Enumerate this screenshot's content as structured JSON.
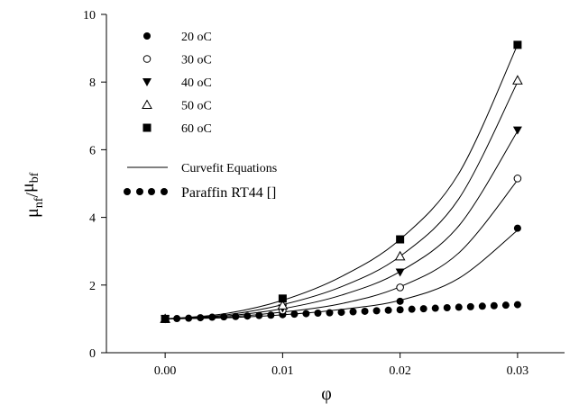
{
  "chart_data": {
    "type": "scatter",
    "title": "",
    "xlabel": "φ",
    "ylabel": {
      "main": "μ",
      "sub1": "nf",
      "sep": "/",
      "main2": "μ",
      "sub2": "bf"
    },
    "xlim": [
      -0.005,
      0.034
    ],
    "ylim": [
      0,
      10
    ],
    "xticks": [
      0.0,
      0.01,
      0.02,
      0.03
    ],
    "xtick_labels": [
      "0.00",
      "0.01",
      "0.02",
      "0.03"
    ],
    "yticks": [
      0,
      2,
      4,
      6,
      8,
      10
    ],
    "ytick_labels": [
      "0",
      "2",
      "4",
      "6",
      "8",
      "10"
    ],
    "grid": false,
    "legend_position": "top-left",
    "series": [
      {
        "name": "20 oC",
        "marker": "filled-circle",
        "x": [
          0.0,
          0.01,
          0.02,
          0.03
        ],
        "y": [
          1.0,
          1.15,
          1.52,
          3.68
        ]
      },
      {
        "name": "30 oC",
        "marker": "open-circle",
        "x": [
          0.0,
          0.01,
          0.02,
          0.03
        ],
        "y": [
          1.0,
          1.25,
          1.93,
          5.15
        ]
      },
      {
        "name": "40 oC",
        "marker": "filled-triangle-down",
        "x": [
          0.0,
          0.01,
          0.02,
          0.03
        ],
        "y": [
          1.0,
          1.32,
          2.38,
          6.58
        ]
      },
      {
        "name": "50 oC",
        "marker": "open-triangle-up",
        "x": [
          0.0,
          0.01,
          0.02,
          0.03
        ],
        "y": [
          1.0,
          1.4,
          2.85,
          8.05
        ]
      },
      {
        "name": "60 oC",
        "marker": "filled-square",
        "x": [
          0.0,
          0.01,
          0.02,
          0.03
        ],
        "y": [
          1.0,
          1.6,
          3.35,
          9.1
        ]
      }
    ],
    "curvefit": {
      "name": "Curvefit Equations",
      "curves": [
        {
          "x": [
            0.0,
            0.005,
            0.01,
            0.015,
            0.02,
            0.025,
            0.03
          ],
          "y": [
            1.0,
            1.03,
            1.12,
            1.28,
            1.55,
            2.2,
            3.62
          ]
        },
        {
          "x": [
            0.0,
            0.005,
            0.01,
            0.015,
            0.02,
            0.025,
            0.03
          ],
          "y": [
            1.0,
            1.05,
            1.2,
            1.45,
            1.95,
            2.95,
            5.1
          ]
        },
        {
          "x": [
            0.0,
            0.005,
            0.01,
            0.015,
            0.02,
            0.025,
            0.03
          ],
          "y": [
            1.0,
            1.08,
            1.3,
            1.7,
            2.4,
            3.75,
            6.55
          ]
        },
        {
          "x": [
            0.0,
            0.005,
            0.01,
            0.015,
            0.02,
            0.025,
            0.03
          ],
          "y": [
            1.0,
            1.11,
            1.42,
            1.95,
            2.85,
            4.55,
            8.0
          ]
        },
        {
          "x": [
            0.0,
            0.005,
            0.01,
            0.015,
            0.02,
            0.025,
            0.03
          ],
          "y": [
            1.0,
            1.15,
            1.55,
            2.25,
            3.35,
            5.3,
            9.1
          ]
        }
      ]
    },
    "reference": {
      "name": "Paraffin RT44 []",
      "marker": "filled-circle-dotted-line",
      "x": [
        0.0,
        0.001,
        0.002,
        0.003,
        0.004,
        0.005,
        0.006,
        0.007,
        0.008,
        0.009,
        0.01,
        0.011,
        0.012,
        0.013,
        0.014,
        0.015,
        0.016,
        0.017,
        0.018,
        0.019,
        0.02,
        0.021,
        0.022,
        0.023,
        0.024,
        0.025,
        0.026,
        0.027,
        0.028,
        0.029,
        0.03
      ],
      "y": [
        1.0,
        1.01,
        1.02,
        1.035,
        1.05,
        1.06,
        1.07,
        1.085,
        1.1,
        1.11,
        1.125,
        1.14,
        1.155,
        1.17,
        1.18,
        1.195,
        1.21,
        1.225,
        1.24,
        1.255,
        1.27,
        1.285,
        1.3,
        1.315,
        1.33,
        1.345,
        1.36,
        1.375,
        1.39,
        1.405,
        1.42
      ]
    },
    "colors": {
      "axis": "#000000",
      "marker": "#000000",
      "background": "#ffffff"
    }
  }
}
